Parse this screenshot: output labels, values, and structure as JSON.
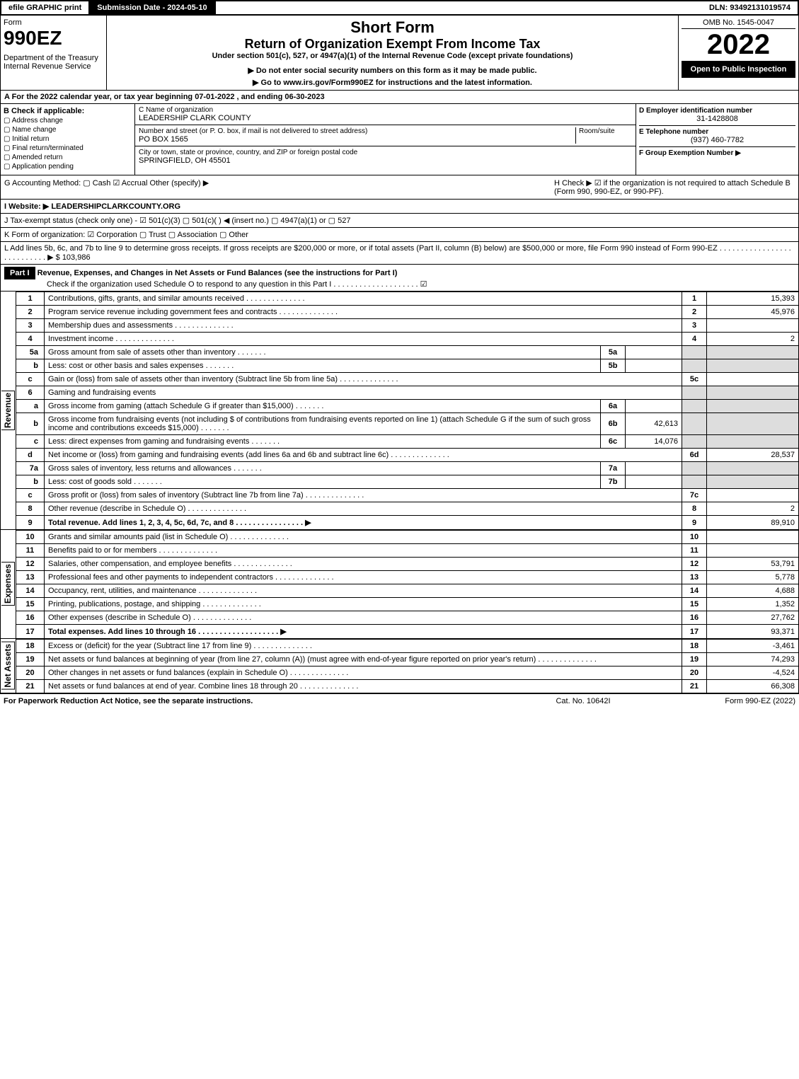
{
  "topbar": {
    "efile": "efile GRAPHIC print",
    "submission": "Submission Date - 2024-05-10",
    "dln": "DLN: 93492131019574"
  },
  "header": {
    "form_label": "Form",
    "form_no": "990EZ",
    "dept": "Department of the Treasury\nInternal Revenue Service",
    "short_form": "Short Form",
    "return_title": "Return of Organization Exempt From Income Tax",
    "under": "Under section 501(c), 527, or 4947(a)(1) of the Internal Revenue Code (except private foundations)",
    "note1": "▶ Do not enter social security numbers on this form as it may be made public.",
    "note2": "▶ Go to www.irs.gov/Form990EZ for instructions and the latest information.",
    "omb": "OMB No. 1545-0047",
    "year": "2022",
    "open": "Open to Public Inspection"
  },
  "A": "A  For the 2022 calendar year, or tax year beginning 07-01-2022 , and ending 06-30-2023",
  "B": {
    "title": "B  Check if applicable:",
    "items": [
      "Address change",
      "Name change",
      "Initial return",
      "Final return/terminated",
      "Amended return",
      "Application pending"
    ]
  },
  "C": {
    "name_label": "C Name of organization",
    "name": "LEADERSHIP CLARK COUNTY",
    "street_label": "Number and street (or P. O. box, if mail is not delivered to street address)",
    "room_label": "Room/suite",
    "street": "PO BOX 1565",
    "city_label": "City or town, state or province, country, and ZIP or foreign postal code",
    "city": "SPRINGFIELD, OH  45501"
  },
  "D": {
    "ein_label": "D Employer identification number",
    "ein": "31-1428808",
    "phone_label": "E Telephone number",
    "phone": "(937) 460-7782",
    "group_label": "F Group Exemption Number  ▶"
  },
  "G": "G Accounting Method:   ▢ Cash   ☑ Accrual   Other (specify) ▶",
  "H": "H   Check ▶  ☑  if the organization is not required to attach Schedule B (Form 990, 990-EZ, or 990-PF).",
  "I": "I Website: ▶ LEADERSHIPCLARKCOUNTY.ORG",
  "J": "J Tax-exempt status (check only one) -  ☑ 501(c)(3)  ▢ 501(c)(  ) ◀ (insert no.)  ▢ 4947(a)(1) or  ▢ 527",
  "K": "K Form of organization:   ☑ Corporation   ▢ Trust   ▢ Association   ▢ Other",
  "L": "L Add lines 5b, 6c, and 7b to line 9 to determine gross receipts. If gross receipts are $200,000 or more, or if total assets (Part II, column (B) below) are $500,000 or more, file Form 990 instead of Form 990-EZ  .  .  .  .  .  .  .  .  .  .  .  .  .  .  .  .  .  .  .  .  .  .  .  .  .  .  . ▶ $ 103,986",
  "partI": {
    "label": "Part I",
    "title": "Revenue, Expenses, and Changes in Net Assets or Fund Balances (see the instructions for Part I)",
    "check": "Check if the organization used Schedule O to respond to any question in this Part I  .  .  .  .  .  .  .  .  .  .  .  .  .  .  .  .  .  .  .  .  ☑"
  },
  "revenue": [
    {
      "n": "1",
      "label": "Contributions, gifts, grants, and similar amounts received",
      "r": "1",
      "v": "15,393"
    },
    {
      "n": "2",
      "label": "Program service revenue including government fees and contracts",
      "r": "2",
      "v": "45,976"
    },
    {
      "n": "3",
      "label": "Membership dues and assessments",
      "r": "3",
      "v": ""
    },
    {
      "n": "4",
      "label": "Investment income",
      "r": "4",
      "v": "2"
    },
    {
      "n": "5a",
      "label": "Gross amount from sale of assets other than inventory",
      "box": "5a",
      "mv": ""
    },
    {
      "n": "b",
      "label": "Less: cost or other basis and sales expenses",
      "box": "5b",
      "mv": ""
    },
    {
      "n": "c",
      "label": "Gain or (loss) from sale of assets other than inventory (Subtract line 5b from line 5a)",
      "r": "5c",
      "v": ""
    },
    {
      "n": "6",
      "label": "Gaming and fundraising events"
    },
    {
      "n": "a",
      "label": "Gross income from gaming (attach Schedule G if greater than $15,000)",
      "box": "6a",
      "mv": ""
    },
    {
      "n": "b",
      "label": "Gross income from fundraising events (not including $                    of contributions from fundraising events reported on line 1) (attach Schedule G if the sum of such gross income and contributions exceeds $15,000)",
      "box": "6b",
      "mv": "42,613"
    },
    {
      "n": "c",
      "label": "Less: direct expenses from gaming and fundraising events",
      "box": "6c",
      "mv": "14,076"
    },
    {
      "n": "d",
      "label": "Net income or (loss) from gaming and fundraising events (add lines 6a and 6b and subtract line 6c)",
      "r": "6d",
      "v": "28,537"
    },
    {
      "n": "7a",
      "label": "Gross sales of inventory, less returns and allowances",
      "box": "7a",
      "mv": ""
    },
    {
      "n": "b",
      "label": "Less: cost of goods sold",
      "box": "7b",
      "mv": ""
    },
    {
      "n": "c",
      "label": "Gross profit or (loss) from sales of inventory (Subtract line 7b from line 7a)",
      "r": "7c",
      "v": ""
    },
    {
      "n": "8",
      "label": "Other revenue (describe in Schedule O)",
      "r": "8",
      "v": "2"
    },
    {
      "n": "9",
      "label": "Total revenue. Add lines 1, 2, 3, 4, 5c, 6d, 7c, and 8   .  .  .  .  .  .  .  .  .  .  .  .  .  .  .  .  ▶",
      "r": "9",
      "v": "89,910",
      "bold": true
    }
  ],
  "expenses": [
    {
      "n": "10",
      "label": "Grants and similar amounts paid (list in Schedule O)",
      "r": "10",
      "v": ""
    },
    {
      "n": "11",
      "label": "Benefits paid to or for members",
      "r": "11",
      "v": ""
    },
    {
      "n": "12",
      "label": "Salaries, other compensation, and employee benefits",
      "r": "12",
      "v": "53,791"
    },
    {
      "n": "13",
      "label": "Professional fees and other payments to independent contractors",
      "r": "13",
      "v": "5,778"
    },
    {
      "n": "14",
      "label": "Occupancy, rent, utilities, and maintenance",
      "r": "14",
      "v": "4,688"
    },
    {
      "n": "15",
      "label": "Printing, publications, postage, and shipping",
      "r": "15",
      "v": "1,352"
    },
    {
      "n": "16",
      "label": "Other expenses (describe in Schedule O)",
      "r": "16",
      "v": "27,762"
    },
    {
      "n": "17",
      "label": "Total expenses. Add lines 10 through 16    .  .  .  .  .  .  .  .  .  .  .  .  .  .  .  .  .  .  .  ▶",
      "r": "17",
      "v": "93,371",
      "bold": true
    }
  ],
  "netassets": [
    {
      "n": "18",
      "label": "Excess or (deficit) for the year (Subtract line 17 from line 9)",
      "r": "18",
      "v": "-3,461"
    },
    {
      "n": "19",
      "label": "Net assets or fund balances at beginning of year (from line 27, column (A)) (must agree with end-of-year figure reported on prior year's return)",
      "r": "19",
      "v": "74,293"
    },
    {
      "n": "20",
      "label": "Other changes in net assets or fund balances (explain in Schedule O)",
      "r": "20",
      "v": "-4,524"
    },
    {
      "n": "21",
      "label": "Net assets or fund balances at end of year. Combine lines 18 through 20",
      "r": "21",
      "v": "66,308"
    }
  ],
  "footer": {
    "l": "For Paperwork Reduction Act Notice, see the separate instructions.",
    "c": "Cat. No. 10642I",
    "r": "Form 990-EZ (2022)"
  }
}
